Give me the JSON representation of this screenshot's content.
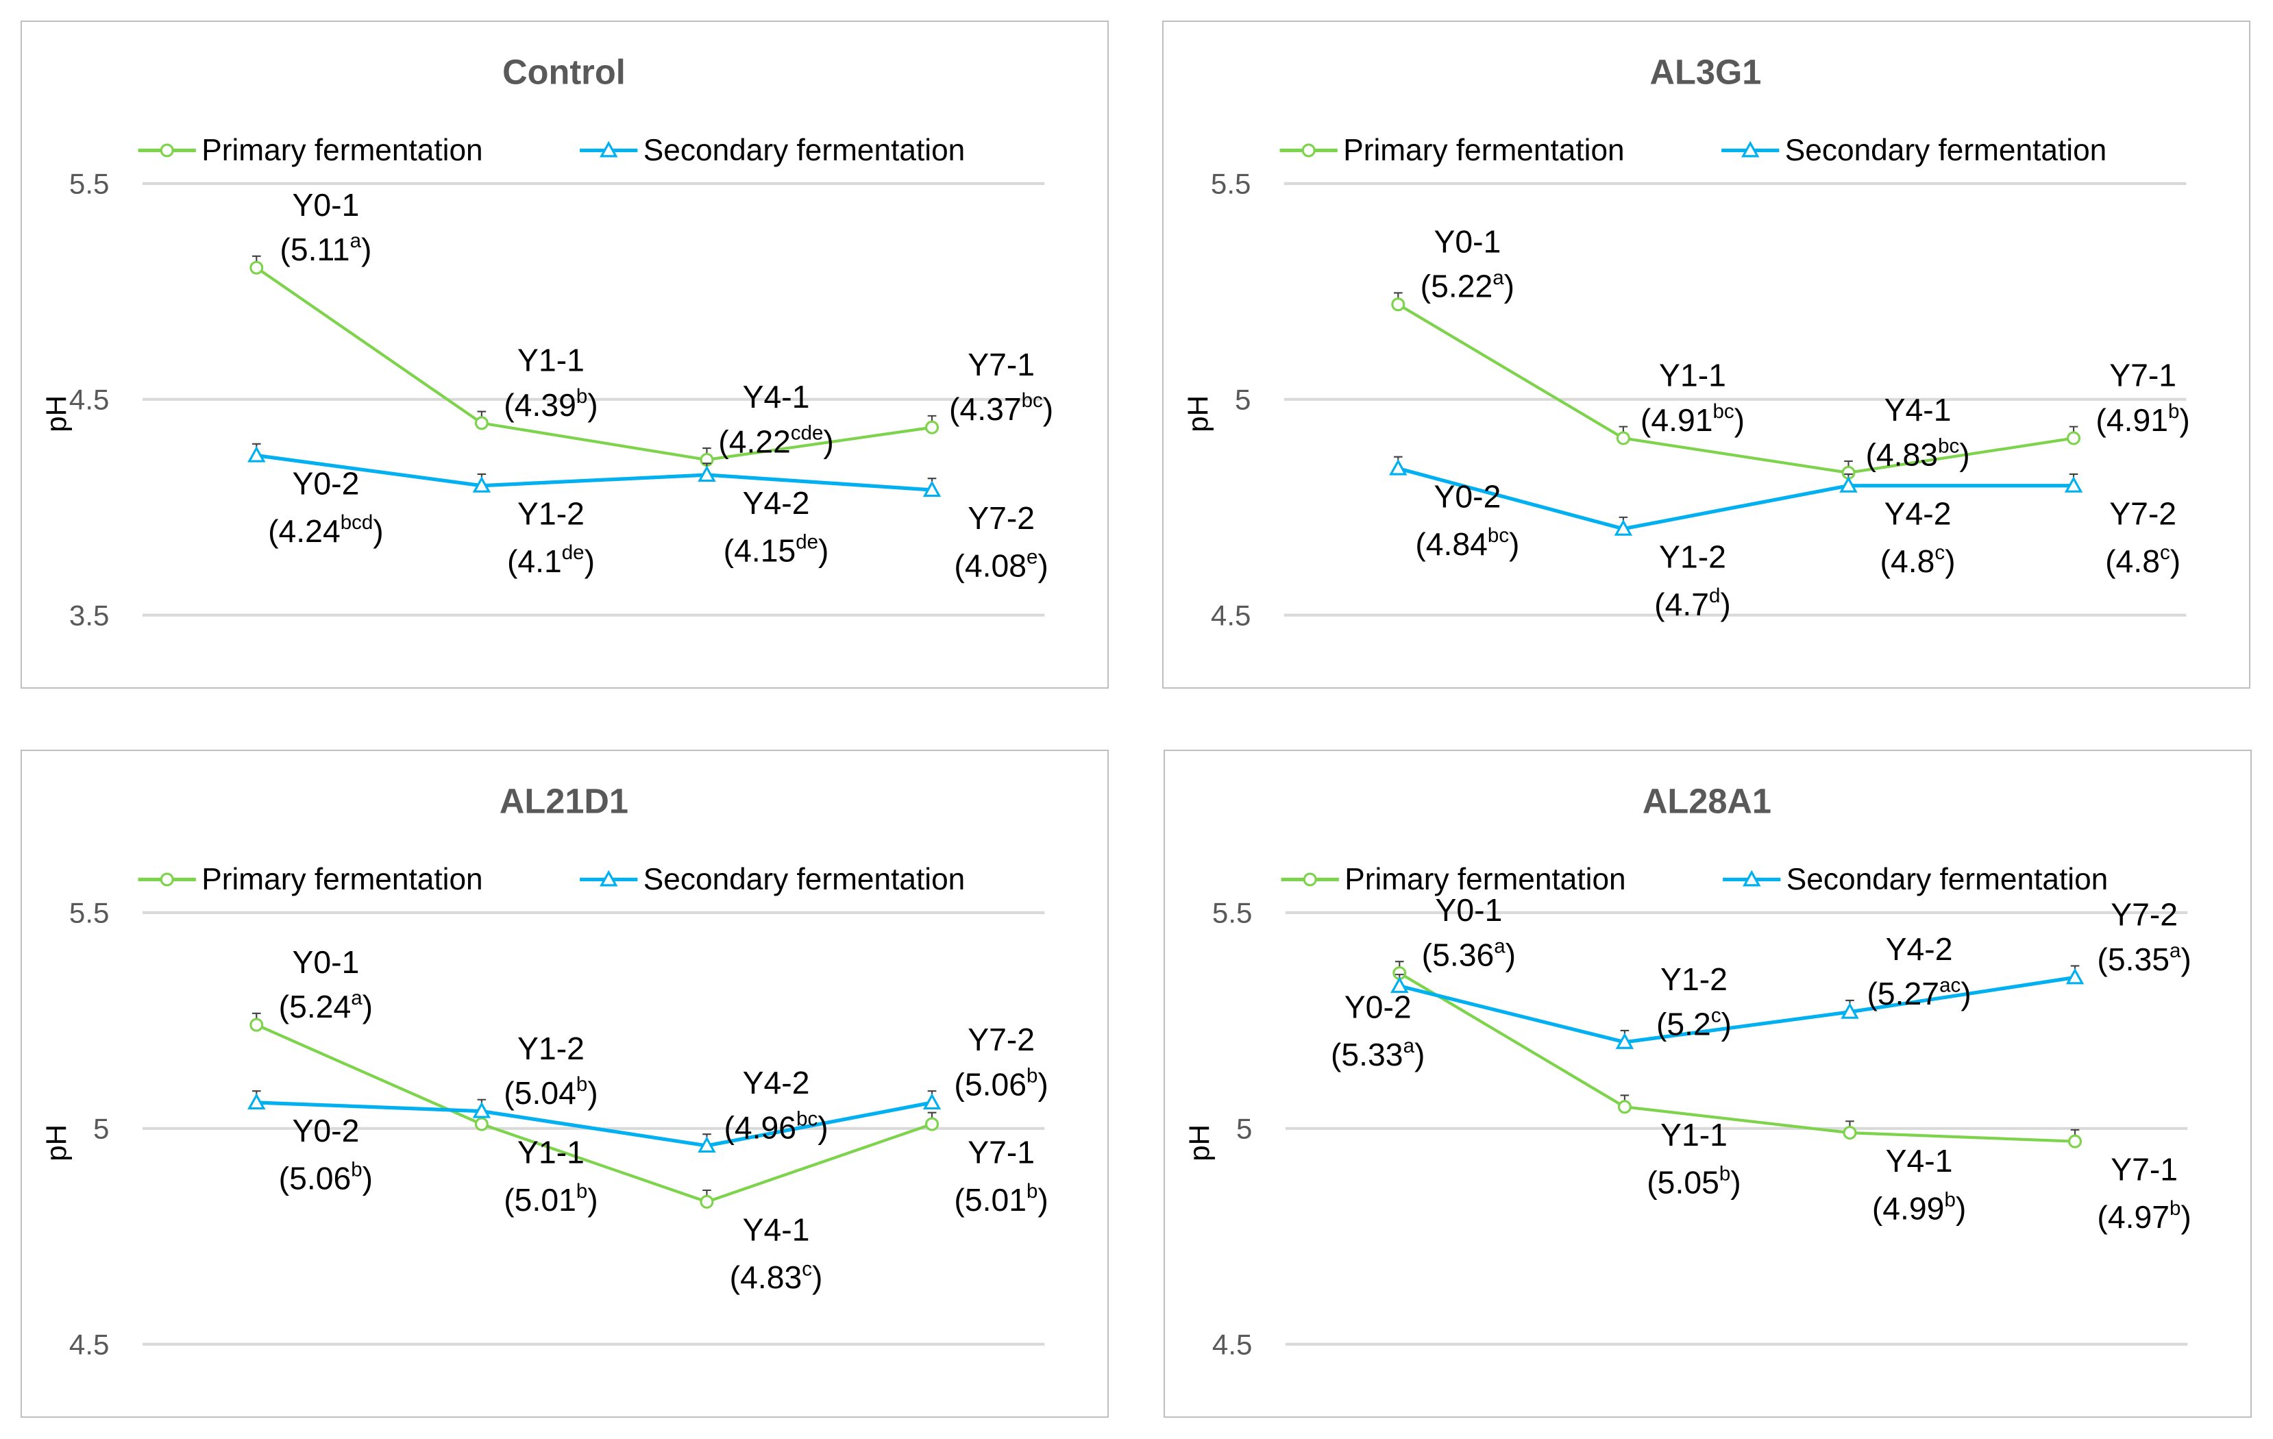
{
  "colors": {
    "primary": "#7dd34b",
    "secondary": "#00b0f0",
    "grid": "#d9d9d9"
  },
  "chart_data": [
    {
      "type": "line",
      "title": "Control",
      "ylabel": "pH",
      "xlabel": "",
      "ylim": [
        3.5,
        5.5
      ],
      "yticks": [
        "5.5",
        "4.5",
        "3.5"
      ],
      "tick_values": [
        5.5,
        4.5,
        3.5
      ],
      "grid": true,
      "legend_position": "top",
      "categories": [
        "Y0",
        "Y1",
        "Y4",
        "Y7"
      ],
      "series": [
        {
          "name": "Primary fermentation",
          "values": [
            5.11,
            4.39,
            4.22,
            4.37
          ],
          "labels": [
            {
              "name": "Y0-1",
              "value": "(5.11",
              "sup": "a",
              "pos": "above"
            },
            {
              "name": "Y1-1",
              "value": "(4.39",
              "sup": "b",
              "pos": "above"
            },
            {
              "name": "Y4-1",
              "value": "(4.22",
              "sup": "cde",
              "pos": "above"
            },
            {
              "name": "Y7-1",
              "value": "(4.37",
              "sup": "bc",
              "pos": "above"
            }
          ]
        },
        {
          "name": "Secondary fermentation",
          "values": [
            4.24,
            4.1,
            4.15,
            4.08
          ],
          "labels": [
            {
              "name": "Y0-2",
              "value": "(4.24",
              "sup": "bcd",
              "pos": "below"
            },
            {
              "name": "Y1-2",
              "value": "(4.1",
              "sup": "de",
              "pos": "below"
            },
            {
              "name": "Y4-2",
              "value": "(4.15",
              "sup": "de",
              "pos": "below"
            },
            {
              "name": "Y7-2",
              "value": "(4.08",
              "sup": "e",
              "pos": "below"
            }
          ]
        }
      ]
    },
    {
      "type": "line",
      "title": "AL3G1",
      "ylabel": "pH",
      "xlabel": "",
      "ylim": [
        4.5,
        5.5
      ],
      "yticks": [
        "5.5",
        "5",
        "4.5"
      ],
      "tick_values": [
        5.5,
        5,
        4.5
      ],
      "grid": true,
      "legend_position": "top",
      "categories": [
        "Y0",
        "Y1",
        "Y4",
        "Y7"
      ],
      "series": [
        {
          "name": "Primary fermentation",
          "values": [
            5.22,
            4.91,
            4.83,
            4.91
          ],
          "labels": [
            {
              "name": "Y0-1",
              "value": "(5.22",
              "sup": "a",
              "pos": "above"
            },
            {
              "name": "Y1-1",
              "value": "(4.91",
              "sup": "bc",
              "pos": "above"
            },
            {
              "name": "Y4-1",
              "value": "(4.83",
              "sup": "bc",
              "pos": "above"
            },
            {
              "name": "Y7-1",
              "value": "(4.91",
              "sup": "b",
              "pos": "above"
            }
          ]
        },
        {
          "name": "Secondary fermentation",
          "values": [
            4.84,
            4.7,
            4.8,
            4.8
          ],
          "labels": [
            {
              "name": "Y0-2",
              "value": "(4.84",
              "sup": "bc",
              "pos": "below"
            },
            {
              "name": "Y1-2",
              "value": "(4.7",
              "sup": "d",
              "pos": "below"
            },
            {
              "name": "Y4-2",
              "value": "(4.8",
              "sup": "c",
              "pos": "below"
            },
            {
              "name": "Y7-2",
              "value": "(4.8",
              "sup": "c",
              "pos": "below"
            }
          ]
        }
      ]
    },
    {
      "type": "line",
      "title": "AL21D1",
      "ylabel": "pH",
      "xlabel": "",
      "ylim": [
        4.5,
        5.5
      ],
      "yticks": [
        "5.5",
        "5",
        "4.5"
      ],
      "tick_values": [
        5.5,
        5,
        4.5
      ],
      "grid": true,
      "legend_position": "top",
      "categories": [
        "Y0",
        "Y1",
        "Y4",
        "Y7"
      ],
      "series": [
        {
          "name": "Primary fermentation",
          "values": [
            5.24,
            5.01,
            4.83,
            5.01
          ],
          "labels": [
            {
              "name": "Y0-1",
              "value": "(5.24",
              "sup": "a",
              "pos": "above"
            },
            {
              "name": "Y1-1",
              "value": "(5.01",
              "sup": "b",
              "pos": "below"
            },
            {
              "name": "Y4-1",
              "value": "(4.83",
              "sup": "c",
              "pos": "below"
            },
            {
              "name": "Y7-1",
              "value": "(5.01",
              "sup": "b",
              "pos": "below"
            }
          ]
        },
        {
          "name": "Secondary fermentation",
          "values": [
            5.06,
            5.04,
            4.96,
            5.06
          ],
          "labels": [
            {
              "name": "Y0-2",
              "value": "(5.06",
              "sup": "b",
              "pos": "below"
            },
            {
              "name": "Y1-2",
              "value": "(5.04",
              "sup": "b",
              "pos": "above"
            },
            {
              "name": "Y4-2",
              "value": "(4.96",
              "sup": "bc",
              "pos": "above"
            },
            {
              "name": "Y7-2",
              "value": "(5.06",
              "sup": "b",
              "pos": "above"
            }
          ]
        }
      ]
    },
    {
      "type": "line",
      "title": "AL28A1",
      "ylabel": "pH",
      "xlabel": "",
      "ylim": [
        4.5,
        5.5
      ],
      "yticks": [
        "5.5",
        "5",
        "4.5"
      ],
      "tick_values": [
        5.5,
        5,
        4.5
      ],
      "grid": true,
      "legend_position": "top",
      "categories": [
        "Y0",
        "Y1",
        "Y4",
        "Y7"
      ],
      "series": [
        {
          "name": "Primary fermentation",
          "values": [
            5.36,
            5.05,
            4.99,
            4.97
          ],
          "labels": [
            {
              "name": "Y0-1",
              "value": "(5.36",
              "sup": "a",
              "pos": "above"
            },
            {
              "name": "Y1-1",
              "value": "(5.05",
              "sup": "b",
              "pos": "below"
            },
            {
              "name": "Y4-1",
              "value": "(4.99",
              "sup": "b",
              "pos": "below"
            },
            {
              "name": "Y7-1",
              "value": "(4.97",
              "sup": "b",
              "pos": "below"
            }
          ]
        },
        {
          "name": "Secondary fermentation",
          "values": [
            5.33,
            5.2,
            5.27,
            5.35
          ],
          "labels": [
            {
              "name": "Y0-2",
              "value": "(5.33",
              "sup": "a",
              "pos": "left"
            },
            {
              "name": "Y1-2",
              "value": "(5.2",
              "sup": "c",
              "pos": "above"
            },
            {
              "name": "Y4-2",
              "value": "(5.27",
              "sup": "ac",
              "pos": "above"
            },
            {
              "name": "Y7-2",
              "value": "(5.35",
              "sup": "a",
              "pos": "above"
            }
          ]
        }
      ]
    }
  ]
}
